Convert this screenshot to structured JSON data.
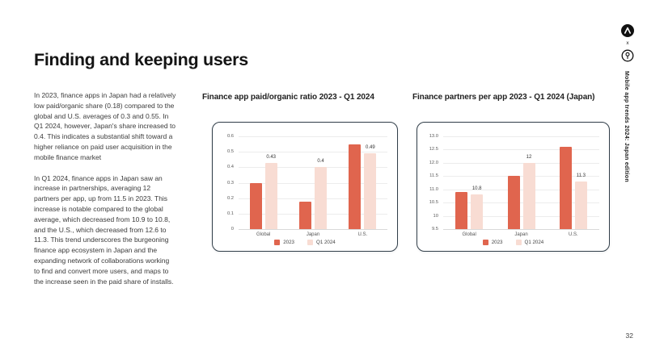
{
  "page": {
    "title": "Finding and keeping users",
    "page_number": "32"
  },
  "intro": {
    "p1": "In 2023, finance apps in Japan had a relatively low paid/organic share (0.18) compared to the global and U.S. averages of 0.3 and 0.55. In Q1 2024, however, Japan's share increased to 0.4. This indicates a substantial shift toward a higher reliance on paid user acquisition in the mobile finance market",
    "p2": "In Q1 2024, finance apps in Japan saw an increase in partnerships, averaging 12 partners per app, up from 11.5 in 2023. This increase is notable compared to the global average, which decreased from 10.9 to 10.8, and the U.S., which decreased from 12.6 to 11.3. This trend underscores the burgeoning finance app ecosystem in Japan and the expanding network of collaborations working to find and convert more users, and maps to the increase seen in the paid share of installs."
  },
  "sidebar": {
    "brand_icons": [
      "adjust-logo",
      "partner-logo"
    ],
    "separator": "x",
    "vertical_label": "Mobile app trends 2024: Japan edition"
  },
  "colors": {
    "series_2023": "#E0654E",
    "series_q1_2024": "#F8DCD3",
    "card_border": "#313E49"
  },
  "charts": [
    {
      "title": "Finance app paid/organic ratio 2023 - Q1 2024",
      "chart_data": {
        "type": "bar",
        "categories": [
          "Global",
          "Japan",
          "U.S."
        ],
        "series": [
          {
            "name": "2023",
            "color": "#E0654E",
            "values": [
              0.3,
              0.18,
              0.55
            ],
            "show_labels": false,
            "labels": [
              "",
              "",
              ""
            ]
          },
          {
            "name": "Q1 2024",
            "color": "#F8DCD3",
            "values": [
              0.43,
              0.4,
              0.49
            ],
            "show_labels": true,
            "labels": [
              "0.43",
              "0.4",
              "0.49"
            ]
          }
        ],
        "ylim": [
          0,
          0.6
        ],
        "yticks": [
          {
            "v": 0,
            "label": "0"
          },
          {
            "v": 0.1,
            "label": "0.1"
          },
          {
            "v": 0.2,
            "label": "0.2"
          },
          {
            "v": 0.3,
            "label": "0.3"
          },
          {
            "v": 0.4,
            "label": "0.4"
          },
          {
            "v": 0.5,
            "label": "0.5"
          },
          {
            "v": 0.6,
            "label": "0.6"
          }
        ],
        "legend_position": "bottom",
        "grid": true
      }
    },
    {
      "title": "Finance partners per app 2023 - Q1 2024 (Japan)",
      "chart_data": {
        "type": "bar",
        "categories": [
          "Global",
          "Japan",
          "U.S."
        ],
        "series": [
          {
            "name": "2023",
            "color": "#E0654E",
            "values": [
              10.9,
              11.5,
              12.6
            ],
            "show_labels": false,
            "labels": [
              "",
              "",
              ""
            ]
          },
          {
            "name": "Q1 2024",
            "color": "#F8DCD3",
            "values": [
              10.8,
              12,
              11.3
            ],
            "show_labels": true,
            "labels": [
              "10.8",
              "12",
              "11.3"
            ]
          }
        ],
        "ylim": [
          9.5,
          13.0
        ],
        "yticks": [
          {
            "v": 9.5,
            "label": "9.5"
          },
          {
            "v": 10,
            "label": "10"
          },
          {
            "v": 10.5,
            "label": "10.5"
          },
          {
            "v": 11,
            "label": "11.0"
          },
          {
            "v": 11.5,
            "label": "11.5"
          },
          {
            "v": 12,
            "label": "12.0"
          },
          {
            "v": 12.5,
            "label": "12.5"
          },
          {
            "v": 13,
            "label": "13.0"
          }
        ],
        "legend_position": "bottom",
        "grid": true
      }
    }
  ]
}
